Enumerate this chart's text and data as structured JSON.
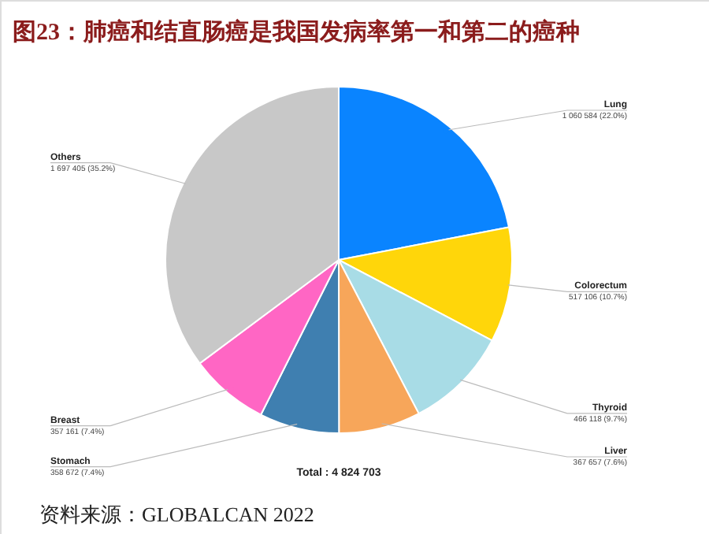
{
  "chart_data": {
    "type": "pie",
    "title": "图23：肺癌和结直肠癌是我国发病率第一和第二的癌种",
    "categories": [
      "Lung",
      "Colorectum",
      "Thyroid",
      "Liver",
      "Stomach",
      "Breast",
      "Others"
    ],
    "values": [
      1060584,
      517106,
      466118,
      367657,
      358672,
      357161,
      1697405
    ],
    "value_labels": [
      "1 060 584 (22.0%)",
      "517 106 (10.7%)",
      "466 118 (9.7%)",
      "367 657 (7.6%)",
      "358 672 (7.4%)",
      "357 161 (7.4%)",
      "1 697 405 (35.2%)"
    ],
    "colors": [
      "#0a84ff",
      "#ffd60a",
      "#a8dce6",
      "#f7a65a",
      "#3f7fb0",
      "#ff66c4",
      "#c8c8c8"
    ],
    "annotations": [
      "Total : 4 824 703",
      "资料来源：GLOBALCAN 2022"
    ]
  }
}
